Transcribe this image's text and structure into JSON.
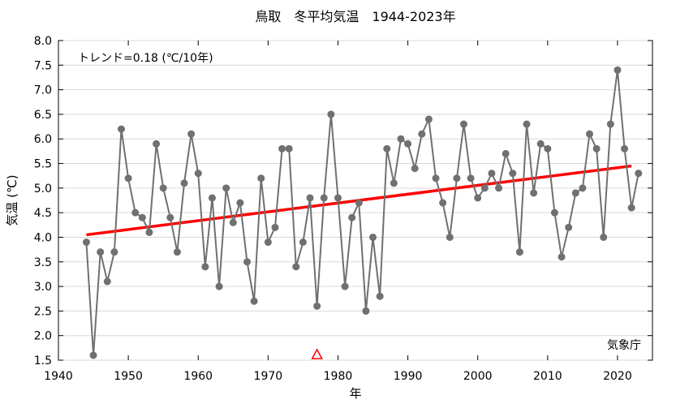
{
  "chart_data": {
    "type": "line",
    "title": "鳥取　冬平均気温　1944-2023年",
    "xlabel": "年",
    "ylabel": "気温 (℃)",
    "xlim": [
      1940,
      2025
    ],
    "ylim": [
      1.5,
      8.0
    ],
    "xticks": [
      "1940",
      "1950",
      "1960",
      "1970",
      "1980",
      "1990",
      "2000",
      "2010",
      "2020"
    ],
    "yticks": [
      "1.5",
      "2.0",
      "2.5",
      "3.0",
      "3.5",
      "4.0",
      "4.5",
      "5.0",
      "5.5",
      "6.0",
      "6.5",
      "7.0",
      "7.5",
      "8.0"
    ],
    "trend_label": "トレンド=0.18 (℃/10年)",
    "source": "気象庁",
    "series": [
      {
        "color": "#707070",
        "x": [
          1944,
          1945,
          1946,
          1947,
          1948,
          1949,
          1950,
          1951,
          1952,
          1953,
          1954,
          1955,
          1956,
          1957,
          1958,
          1959,
          1960,
          1961,
          1962,
          1963,
          1964,
          1965,
          1966,
          1967,
          1968,
          1969,
          1970,
          1971,
          1972,
          1973,
          1974,
          1975,
          1976,
          1977,
          1978,
          1979,
          1980,
          1981,
          1982,
          1983,
          1984,
          1985,
          1986,
          1987,
          1988,
          1989,
          1990,
          1991,
          1992,
          1993,
          1994,
          1995,
          1996,
          1997,
          1998,
          1999,
          2000,
          2001,
          2002,
          2003,
          2004,
          2005,
          2006,
          2007,
          2008,
          2009,
          2010,
          2011,
          2012,
          2013,
          2014,
          2015,
          2016,
          2017,
          2018,
          2019,
          2020,
          2021,
          2022,
          2023
        ],
        "y": [
          3.9,
          1.6,
          3.7,
          3.1,
          3.7,
          6.2,
          5.2,
          4.5,
          4.4,
          4.1,
          5.9,
          5.0,
          4.4,
          3.7,
          5.1,
          6.1,
          5.3,
          3.4,
          4.8,
          3.0,
          5.0,
          4.3,
          4.7,
          3.5,
          2.7,
          5.2,
          3.9,
          4.2,
          5.8,
          5.8,
          3.4,
          3.9,
          4.8,
          2.6,
          4.8,
          6.5,
          4.8,
          3.0,
          4.4,
          4.7,
          2.5,
          4.0,
          2.8,
          5.8,
          5.1,
          6.0,
          5.9,
          5.4,
          6.1,
          6.4,
          5.2,
          4.7,
          4.0,
          5.2,
          6.3,
          5.2,
          4.8,
          5.0,
          5.3,
          5.0,
          5.7,
          5.3,
          3.7,
          6.3,
          4.9,
          5.9,
          5.8,
          4.5,
          3.6,
          4.2,
          4.9,
          5.0,
          6.1,
          5.8,
          4.0,
          6.3,
          7.4,
          5.8,
          4.6,
          5.3
        ]
      }
    ],
    "trend": {
      "color": "#ff0000",
      "x": [
        1944,
        2022
      ],
      "y": [
        4.05,
        5.45
      ]
    },
    "marker": {
      "x": 1977,
      "color": "#ff0000"
    }
  }
}
